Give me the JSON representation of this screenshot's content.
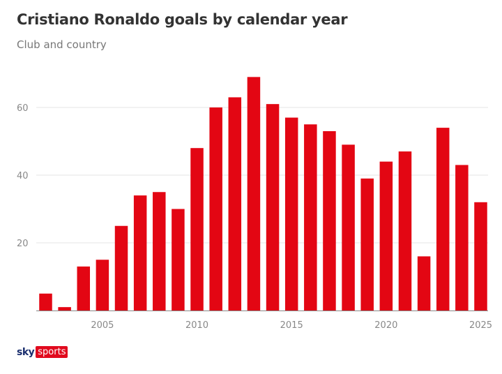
{
  "chart_data": {
    "type": "bar",
    "title": "Cristiano Ronaldo goals by calendar year",
    "subtitle": "Club and country",
    "xlabel": "",
    "ylabel": "",
    "categories": [
      2002,
      2003,
      2004,
      2005,
      2006,
      2007,
      2008,
      2009,
      2010,
      2011,
      2012,
      2013,
      2014,
      2015,
      2016,
      2017,
      2018,
      2019,
      2020,
      2021,
      2022,
      2023,
      2024,
      2025
    ],
    "values": [
      5,
      1,
      13,
      15,
      25,
      34,
      35,
      30,
      48,
      60,
      63,
      69,
      61,
      57,
      55,
      53,
      49,
      39,
      44,
      47,
      16,
      54,
      43,
      32
    ],
    "ylim": [
      0,
      70
    ],
    "yticks": [
      20,
      40,
      60
    ],
    "xticks": [
      2005,
      2010,
      2015,
      2020,
      2025
    ],
    "grid": true,
    "legend": "none",
    "bar_color": "#e30613"
  },
  "branding": {
    "sky": "sky",
    "sports": "sports"
  }
}
